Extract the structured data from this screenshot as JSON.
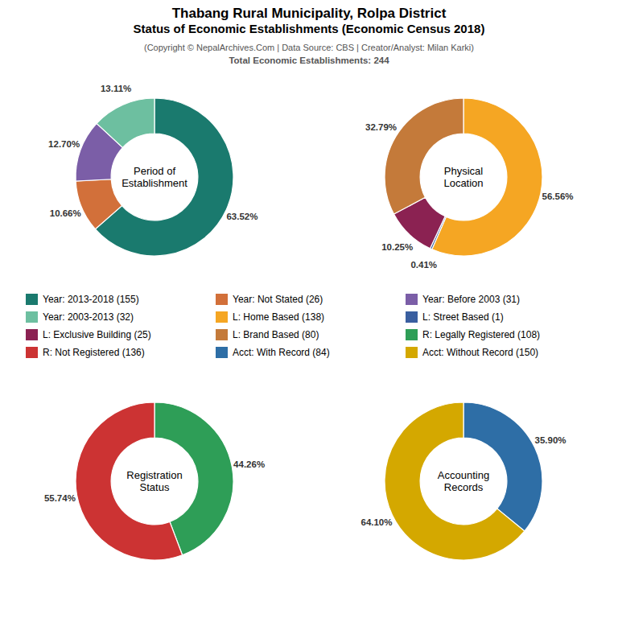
{
  "title": "Thabang Rural Municipality, Rolpa District\nStatus of Economic Establishments (Economic Census 2018)",
  "subtitle": "(Copyright © NepalArchives.Com | Data Source: CBS | Creator/Analyst: Milan Karki)",
  "annotations": [
    "Total Economic Establishments: 244"
  ],
  "chart_data": [
    {
      "type": "donut",
      "title": "Period of\nEstablishment",
      "categories": [
        "Year: 2013-2018 (155)",
        "Year: Not Stated (26)",
        "Year: Before 2003 (31)",
        "Year: 2003-2013 (32)"
      ],
      "values": [
        63.52,
        10.66,
        12.7,
        13.11
      ],
      "value_labels": [
        "63.52%",
        "10.66%",
        "12.70%",
        "13.11%"
      ],
      "colors": [
        "#1a7a6e",
        "#d2703a",
        "#7b5ea7",
        "#6dbfa0"
      ],
      "data_labels": true
    },
    {
      "type": "donut",
      "title": "Physical\nLocation",
      "categories": [
        "L: Home Based (138)",
        "L: Street Based (1)",
        "L: Exclusive Building (25)",
        "L: Brand Based (80)"
      ],
      "values": [
        56.56,
        0.41,
        10.25,
        32.79
      ],
      "value_labels": [
        "56.56%",
        "0.41%",
        "10.25%",
        "32.79%"
      ],
      "colors": [
        "#f5a623",
        "#3a5fa0",
        "#8b2252",
        "#c47a3a"
      ],
      "data_labels": true
    },
    {
      "type": "donut",
      "title": "Registration\nStatus",
      "categories": [
        "R: Legally Registered (108)",
        "R: Not Registered (136)"
      ],
      "values": [
        44.26,
        55.74
      ],
      "value_labels": [
        "44.26%",
        "55.74%"
      ],
      "colors": [
        "#2e9e57",
        "#cc3333"
      ],
      "data_labels": true
    },
    {
      "type": "donut",
      "title": "Accounting\nRecords",
      "categories": [
        "Acct: With Record (84)",
        "Acct: Without Record (150)"
      ],
      "values": [
        35.9,
        64.1
      ],
      "value_labels": [
        "35.90%",
        "64.10%"
      ],
      "colors": [
        "#2e6ea6",
        "#d4a800"
      ],
      "data_labels": true
    }
  ]
}
